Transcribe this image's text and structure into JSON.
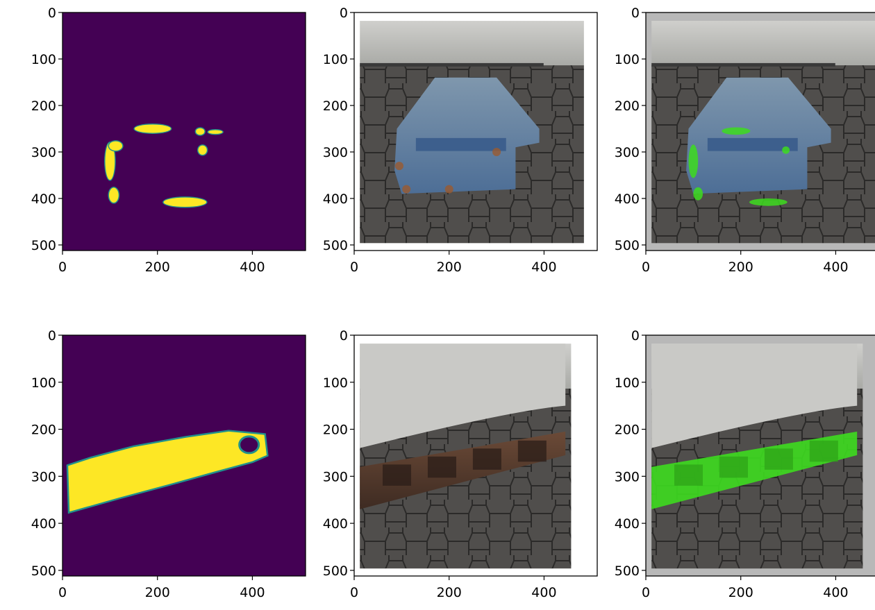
{
  "figure": {
    "layout": "2 rows x 3 columns",
    "panel_kinds": [
      "mask-heatmap",
      "photo",
      "photo-with-green-overlay"
    ]
  },
  "colors": {
    "mask_background": "#440154",
    "mask_foreground": "#fde725",
    "mask_edge": "#21918c",
    "overlay_green": "#3ddc1f",
    "figure_background": "#ffffff"
  },
  "chart_data": [
    {
      "type": "heatmap",
      "row": 1,
      "col": 1,
      "content": "segmentation mask (rust spots on C-channel beam)",
      "xlim": [
        0,
        512
      ],
      "ylim": [
        512,
        0
      ],
      "xticks": [
        0,
        200,
        400
      ],
      "yticks": [
        0,
        100,
        200,
        300,
        400,
        500
      ],
      "xtick_labels": [
        "0",
        "200",
        "400"
      ],
      "ytick_labels": [
        "0",
        "100",
        "200",
        "300",
        "400",
        "500"
      ],
      "colormap": "viridis",
      "blobs": [
        {
          "cx": 190,
          "cy": 250,
          "rx": 38,
          "ry": 9
        },
        {
          "cx": 100,
          "cy": 320,
          "rx": 10,
          "ry": 40
        },
        {
          "cx": 112,
          "cy": 287,
          "rx": 14,
          "ry": 10
        },
        {
          "cx": 108,
          "cy": 393,
          "rx": 10,
          "ry": 16
        },
        {
          "cx": 290,
          "cy": 256,
          "rx": 9,
          "ry": 7
        },
        {
          "cx": 322,
          "cy": 257,
          "rx": 15,
          "ry": 4
        },
        {
          "cx": 295,
          "cy": 296,
          "rx": 9,
          "ry": 10
        },
        {
          "cx": 258,
          "cy": 408,
          "rx": 45,
          "ry": 10
        }
      ]
    },
    {
      "type": "image",
      "row": 1,
      "col": 2,
      "content": "photo of rusty blue C-channel beam under a trailer on paving stones",
      "xlim": [
        0,
        512
      ],
      "ylim": [
        512,
        0
      ],
      "xticks": [
        0,
        200,
        400
      ],
      "yticks": [
        0,
        100,
        200,
        300,
        400,
        500
      ],
      "xtick_labels": [
        "0",
        "200",
        "400"
      ],
      "ytick_labels": [
        "0",
        "100",
        "200",
        "300",
        "400",
        "500"
      ]
    },
    {
      "type": "image",
      "row": 1,
      "col": 3,
      "content": "same photo with detected rust shown as green overlay",
      "xlim": [
        0,
        512
      ],
      "ylim": [
        512,
        0
      ],
      "xticks": [
        0,
        200,
        400
      ],
      "yticks": [
        0,
        100,
        200,
        300,
        400,
        500
      ],
      "xtick_labels": [
        "0",
        "200",
        "400"
      ],
      "ytick_labels": [
        "0",
        "100",
        "200",
        "300",
        "400",
        "500"
      ]
    },
    {
      "type": "heatmap",
      "row": 2,
      "col": 1,
      "content": "segmentation mask (corroded I-beam)",
      "xlim": [
        0,
        512
      ],
      "ylim": [
        512,
        0
      ],
      "xticks": [
        0,
        200,
        400
      ],
      "yticks": [
        0,
        100,
        200,
        300,
        400,
        500
      ],
      "xtick_labels": [
        "0",
        "200",
        "400"
      ],
      "ytick_labels": [
        "0",
        "100",
        "200",
        "300",
        "400",
        "500"
      ],
      "colormap": "viridis",
      "polygon": [
        [
          12,
          278
        ],
        [
          60,
          262
        ],
        [
          150,
          238
        ],
        [
          260,
          218
        ],
        [
          350,
          205
        ],
        [
          425,
          212
        ],
        [
          430,
          255
        ],
        [
          400,
          268
        ],
        [
          320,
          290
        ],
        [
          220,
          318
        ],
        [
          120,
          345
        ],
        [
          15,
          375
        ]
      ]
    },
    {
      "type": "image",
      "row": 2,
      "col": 2,
      "content": "photo of corroded steel beam under a trailer on paving stones",
      "xlim": [
        0,
        512
      ],
      "ylim": [
        512,
        0
      ],
      "xticks": [
        0,
        200,
        400
      ],
      "yticks": [
        0,
        100,
        200,
        300,
        400,
        500
      ],
      "xtick_labels": [
        "0",
        "200",
        "400"
      ],
      "ytick_labels": [
        "0",
        "100",
        "200",
        "300",
        "400",
        "500"
      ]
    },
    {
      "type": "image",
      "row": 2,
      "col": 3,
      "content": "same photo with detected corrosion shown as green overlay",
      "xlim": [
        0,
        512
      ],
      "ylim": [
        512,
        0
      ],
      "xticks": [
        0,
        200,
        400
      ],
      "yticks": [
        0,
        100,
        200,
        300,
        400,
        500
      ],
      "xtick_labels": [
        "0",
        "200",
        "400"
      ],
      "ytick_labels": [
        "0",
        "100",
        "200",
        "300",
        "400",
        "500"
      ]
    }
  ]
}
